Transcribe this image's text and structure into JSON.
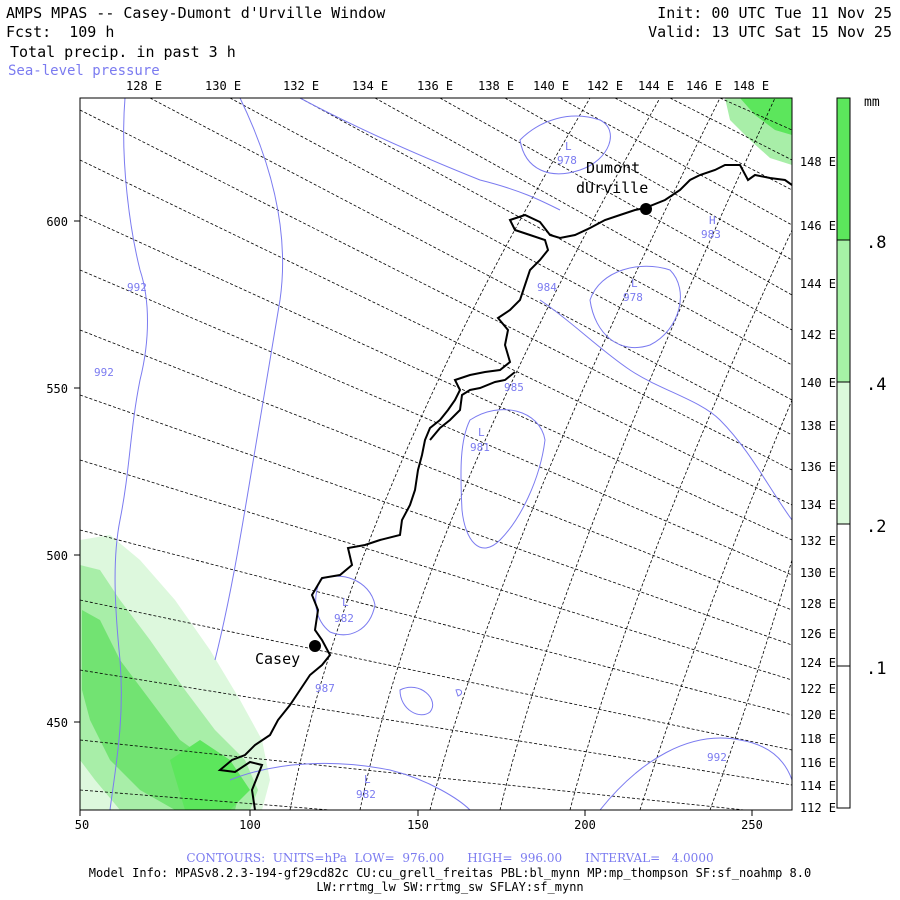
{
  "header": {
    "title": "AMPS MPAS -- Casey-Dumont d'Urville Window",
    "forecast": "Fcst:  109 h",
    "field": "Total precip. in past 3 h",
    "overlay": "Sea-level pressure",
    "init": "Init: 00 UTC Tue 11 Nov 25",
    "valid": "Valid: 13 UTC Sat 15 Nov 25"
  },
  "top_longitudes": [
    "128 E",
    "130 E",
    "132 E",
    "134 E",
    "136 E",
    "138 E",
    "140 E",
    "142 E",
    "144 E",
    "146 E",
    "148 E"
  ],
  "right_longitudes": [
    "148 E",
    "146 E",
    "144 E",
    "142 E",
    "140 E",
    "138 E",
    "136 E",
    "134 E",
    "132 E",
    "130 E",
    "128 E",
    "126 E",
    "124 E",
    "122 E",
    "120 E",
    "118 E",
    "116 E",
    "114 E",
    "112 E"
  ],
  "x_ticks": [
    "50",
    "100",
    "150",
    "200",
    "250"
  ],
  "y_ticks": [
    "600",
    "550",
    "500",
    "450"
  ],
  "stations": [
    {
      "name_lines": [
        "Dumont",
        "dUrville"
      ]
    },
    {
      "name_lines": [
        "Casey"
      ]
    }
  ],
  "pressure_labels": [
    {
      "type": "L",
      "value": "978"
    },
    {
      "type": "H",
      "value": "983"
    },
    {
      "type": "L",
      "value": "978"
    },
    {
      "type": "",
      "value": "984"
    },
    {
      "type": "",
      "value": "992"
    },
    {
      "type": "",
      "value": "992"
    },
    {
      "type": "",
      "value": "985"
    },
    {
      "type": "L",
      "value": "981"
    },
    {
      "type": "L",
      "value": "982"
    },
    {
      "type": "",
      "value": "987"
    },
    {
      "type": "L",
      "value": "982"
    },
    {
      "type": "",
      "value": "992"
    }
  ],
  "colorbar": {
    "unit": "mm",
    "labels": [
      ".8",
      ".4",
      ".2",
      ".1"
    ],
    "colors": [
      "#5ce65c",
      "#a6f2a6",
      "#dbfadb",
      "#ffffff"
    ]
  },
  "colors": {
    "coastline": "#000000",
    "isobar": "#7b7bf0",
    "precip_low": "#c8f5c8",
    "precip_mid": "#8ee88e",
    "precip_high": "#5ce65c"
  },
  "footer": {
    "contours": "CONTOURS:  UNITS=hPa  LOW=  976.00      HIGH=  996.00      INTERVAL=   4.0000",
    "model_info": "Model Info: MPASv8.2.3-194-gf29cd82c CU:cu_grell_freitas PBL:bl_mynn MP:mp_thompson SF:sf_noahmp 8.0",
    "model_info2": "LW:rrtmg_lw SW:rrtmg_sw SFLAY:sf_mynn"
  }
}
